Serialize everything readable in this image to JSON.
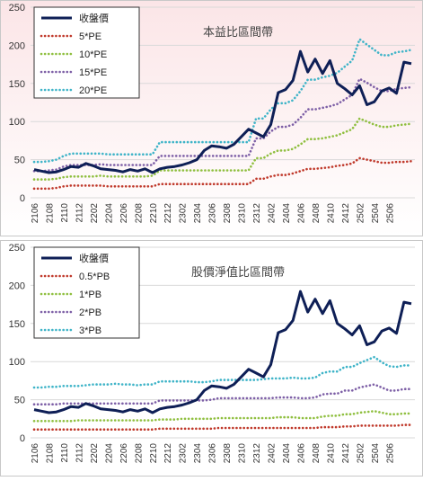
{
  "colors": {
    "close": "#0e1f56",
    "band_low": "#c0392b",
    "band_mid": "#8fbf3f",
    "band_high": "#7d5fa6",
    "band_top": "#3fb4c8",
    "grid": "#d9d9d9",
    "bg_top": "#fbe5e7",
    "bg_bottom": "#ffffff"
  },
  "chart_data": [
    {
      "type": "line",
      "title": "本益比區間帶",
      "ylim": [
        0,
        250
      ],
      "yticks": [
        "0",
        "50",
        "100",
        "150",
        "200",
        "250"
      ],
      "xticks": [
        "2106",
        "2108",
        "2110",
        "2112",
        "2202",
        "2204",
        "2206",
        "2208",
        "2210",
        "2212",
        "2302",
        "2304",
        "2306",
        "2308",
        "2310",
        "2312",
        "2402",
        "2404",
        "2406",
        "2408",
        "2410",
        "2412",
        "2502",
        "2504",
        "2506"
      ],
      "grid": true,
      "legend": "top-left",
      "series": [
        {
          "name": "收盤價",
          "style": "solid",
          "color_key": "close",
          "values": [
            37,
            35,
            33,
            34,
            37,
            41,
            40,
            45,
            42,
            38,
            37,
            36,
            34,
            37,
            35,
            38,
            33,
            38,
            40,
            41,
            43,
            46,
            50,
            62,
            68,
            67,
            65,
            70,
            80,
            90,
            85,
            80,
            96,
            138,
            142,
            154,
            192,
            165,
            182,
            163,
            180,
            150,
            143,
            135,
            147,
            122,
            126,
            140,
            144,
            137,
            178,
            176
          ]
        },
        {
          "name": "5*PE",
          "style": "dotted",
          "color_key": "band_low",
          "values": [
            12,
            12,
            12,
            13,
            15,
            16,
            16,
            16,
            16,
            16,
            15,
            15,
            15,
            15,
            15,
            15,
            15,
            18,
            18,
            18,
            18,
            18,
            18,
            18,
            18,
            18,
            18,
            18,
            18,
            18,
            25,
            25,
            28,
            30,
            30,
            32,
            35,
            38,
            38,
            39,
            40,
            42,
            43,
            45,
            52,
            50,
            48,
            46,
            46,
            47,
            47,
            48
          ]
        },
        {
          "name": "10*PE",
          "style": "dotted",
          "color_key": "band_mid",
          "values": [
            24,
            24,
            24,
            25,
            27,
            28,
            28,
            28,
            28,
            29,
            28,
            28,
            28,
            28,
            28,
            28,
            29,
            36,
            36,
            36,
            36,
            36,
            36,
            36,
            36,
            36,
            36,
            36,
            36,
            36,
            52,
            52,
            58,
            62,
            62,
            64,
            70,
            77,
            77,
            78,
            80,
            82,
            86,
            90,
            104,
            100,
            96,
            93,
            93,
            95,
            96,
            97
          ]
        },
        {
          "name": "15*PE",
          "style": "dotted",
          "color_key": "band_high",
          "values": [
            35,
            35,
            36,
            37,
            41,
            43,
            43,
            43,
            43,
            44,
            43,
            43,
            43,
            43,
            43,
            43,
            43,
            55,
            55,
            55,
            55,
            55,
            55,
            55,
            55,
            55,
            55,
            55,
            55,
            55,
            78,
            78,
            87,
            93,
            93,
            96,
            105,
            116,
            116,
            118,
            120,
            123,
            129,
            135,
            156,
            151,
            145,
            140,
            140,
            143,
            144,
            145
          ]
        },
        {
          "name": "20*PE",
          "style": "dotted",
          "color_key": "band_top",
          "values": [
            47,
            47,
            48,
            50,
            55,
            58,
            58,
            58,
            58,
            58,
            57,
            57,
            57,
            57,
            57,
            57,
            57,
            73,
            73,
            73,
            73,
            73,
            73,
            73,
            73,
            73,
            73,
            73,
            73,
            73,
            104,
            104,
            116,
            124,
            124,
            128,
            140,
            155,
            155,
            158,
            160,
            164,
            172,
            180,
            208,
            201,
            194,
            187,
            187,
            191,
            192,
            194
          ]
        }
      ]
    },
    {
      "type": "line",
      "title": "股價淨值比區間帶",
      "ylim": [
        0,
        250
      ],
      "yticks": [
        "0",
        "50",
        "100",
        "150",
        "200",
        "250"
      ],
      "xticks": [
        "2106",
        "2108",
        "2110",
        "2112",
        "2202",
        "2204",
        "2206",
        "2208",
        "2210",
        "2212",
        "2302",
        "2304",
        "2306",
        "2308",
        "2310",
        "2312",
        "2402",
        "2404",
        "2406",
        "2408",
        "2410",
        "2412",
        "2502",
        "2504",
        "2506"
      ],
      "grid": true,
      "legend": "top-left",
      "series": [
        {
          "name": "收盤價",
          "style": "solid",
          "color_key": "close",
          "values": [
            37,
            35,
            33,
            34,
            37,
            41,
            40,
            45,
            42,
            38,
            37,
            36,
            34,
            37,
            35,
            38,
            33,
            38,
            40,
            41,
            43,
            46,
            50,
            62,
            68,
            67,
            65,
            70,
            80,
            90,
            85,
            80,
            96,
            138,
            142,
            154,
            192,
            165,
            182,
            163,
            180,
            150,
            143,
            135,
            147,
            122,
            126,
            140,
            144,
            137,
            178,
            176
          ]
        },
        {
          "name": "0.5*PB",
          "style": "dotted",
          "color_key": "band_low",
          "values": [
            11,
            11,
            11,
            11,
            11,
            11,
            11,
            11,
            11,
            11,
            11,
            11,
            11,
            11,
            11,
            11,
            11,
            12,
            12,
            12,
            12,
            12,
            12,
            12,
            12,
            13,
            13,
            13,
            13,
            13,
            13,
            13,
            13,
            13,
            13,
            13,
            13,
            13,
            13,
            14,
            14,
            14,
            15,
            15,
            16,
            16,
            16,
            16,
            16,
            16,
            17,
            17
          ]
        },
        {
          "name": "1*PB",
          "style": "dotted",
          "color_key": "band_mid",
          "values": [
            22,
            22,
            22,
            22,
            22,
            22,
            23,
            23,
            23,
            23,
            23,
            23,
            23,
            23,
            23,
            23,
            23,
            24,
            24,
            24,
            25,
            25,
            25,
            25,
            25,
            26,
            26,
            26,
            26,
            26,
            26,
            26,
            26,
            27,
            27,
            27,
            26,
            26,
            26,
            28,
            29,
            29,
            31,
            31,
            33,
            34,
            35,
            33,
            31,
            31,
            32,
            32
          ]
        },
        {
          "name": "2*PB",
          "style": "dotted",
          "color_key": "band_high",
          "values": [
            44,
            44,
            44,
            44,
            45,
            45,
            45,
            45,
            45,
            45,
            45,
            45,
            45,
            45,
            45,
            45,
            45,
            49,
            49,
            49,
            49,
            49,
            49,
            49,
            50,
            52,
            52,
            52,
            52,
            52,
            52,
            52,
            52,
            53,
            53,
            53,
            52,
            52,
            53,
            57,
            58,
            58,
            62,
            62,
            66,
            68,
            70,
            66,
            62,
            62,
            64,
            64
          ]
        },
        {
          "name": "3*PB",
          "style": "dotted",
          "color_key": "band_top",
          "values": [
            66,
            66,
            67,
            67,
            68,
            68,
            68,
            69,
            70,
            70,
            70,
            71,
            70,
            70,
            69,
            70,
            70,
            74,
            74,
            74,
            74,
            74,
            73,
            73,
            74,
            76,
            76,
            76,
            76,
            76,
            76,
            77,
            78,
            78,
            78,
            79,
            78,
            78,
            79,
            85,
            87,
            87,
            93,
            93,
            98,
            102,
            106,
            99,
            94,
            93,
            95,
            95
          ]
        }
      ]
    }
  ]
}
